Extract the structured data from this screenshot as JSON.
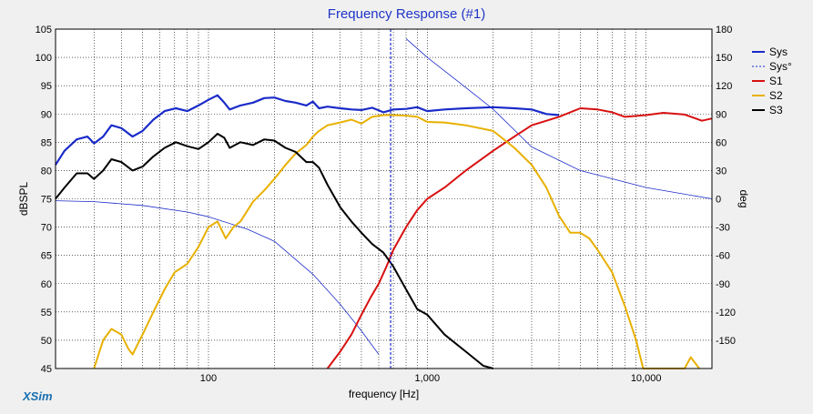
{
  "app": {
    "brand": "XSim"
  },
  "chart_data": {
    "type": "line",
    "title": "Frequency Response (#1)",
    "xlabel": "frequency [Hz]",
    "ylabel": "dBSPL",
    "y2label": "deg",
    "xscale": "log",
    "xlim": [
      20,
      20000
    ],
    "ylim": [
      45,
      105
    ],
    "y2lim": [
      -180,
      180
    ],
    "xticks": [
      100,
      1000,
      10000
    ],
    "xtick_labels": [
      "100",
      "1,000",
      "10,000"
    ],
    "yticks": [
      45,
      50,
      55,
      60,
      65,
      70,
      75,
      80,
      85,
      90,
      95,
      100,
      105
    ],
    "y2ticks": [
      -150,
      -120,
      -90,
      -60,
      -30,
      0,
      30,
      60,
      90,
      120,
      150,
      180
    ],
    "grid": true,
    "legend_position": "top-right",
    "marker_freq": 680,
    "series": [
      {
        "name": "Sys",
        "axis": "left",
        "color": "#1a2bc8",
        "width": 2.2,
        "x": [
          20,
          22,
          25,
          28,
          30,
          33,
          36,
          40,
          45,
          50,
          56,
          63,
          71,
          80,
          90,
          100,
          110,
          118,
          125,
          140,
          160,
          180,
          200,
          225,
          250,
          280,
          300,
          320,
          350,
          400,
          450,
          500,
          560,
          630,
          700,
          800,
          900,
          1000,
          1200,
          1500,
          2000,
          2500,
          3000,
          3500,
          4000
        ],
        "y": [
          81,
          83.5,
          85.5,
          86,
          84.8,
          86,
          88,
          87.5,
          86,
          87,
          89,
          90.5,
          91,
          90.5,
          91.5,
          92.5,
          93.3,
          92,
          90.8,
          91.5,
          92,
          92.8,
          92.9,
          92.3,
          92,
          91.5,
          92.2,
          91,
          91.3,
          91,
          90.8,
          90.7,
          91.1,
          90.3,
          90.8,
          90.9,
          91.2,
          90.5,
          90.8,
          91,
          91.2,
          91,
          90.8,
          90,
          89.8
        ]
      },
      {
        "name": "Sys°",
        "axis": "right",
        "color": "#1a2bc8",
        "width": 0.8,
        "x": [
          20,
          30,
          50,
          80,
          100,
          150,
          200,
          300,
          400,
          500,
          600,
          700,
          800,
          1000,
          1500,
          2000,
          3000,
          5000,
          10000,
          20000
        ],
        "y": [
          -2,
          -3,
          -7,
          -14,
          -19,
          -32,
          -45,
          -80,
          -112,
          -140,
          -165,
          185,
          170,
          150,
          118,
          95,
          55,
          30,
          12,
          0
        ]
      },
      {
        "name": "S1",
        "axis": "left",
        "color": "#d81010",
        "width": 2,
        "x": [
          350,
          400,
          450,
          500,
          550,
          600,
          650,
          700,
          800,
          900,
          1000,
          1200,
          1500,
          2000,
          2500,
          3000,
          4000,
          5000,
          6000,
          7000,
          8000,
          10000,
          12000,
          15000,
          18000,
          20000
        ],
        "y": [
          45,
          48,
          51,
          54.5,
          57.5,
          60,
          63,
          66,
          70,
          73,
          75,
          77,
          80,
          83.5,
          86,
          88,
          89.5,
          91,
          90.8,
          90.3,
          89.5,
          89.8,
          90.2,
          89.9,
          88.8,
          89.2
        ]
      },
      {
        "name": "S2",
        "axis": "left",
        "color": "#e8b000",
        "width": 2,
        "x": [
          30,
          33,
          36,
          40,
          43,
          45,
          50,
          56,
          63,
          70,
          80,
          90,
          100,
          110,
          120,
          130,
          140,
          160,
          180,
          200,
          225,
          250,
          280,
          300,
          320,
          350,
          400,
          450,
          500,
          560,
          630,
          700,
          800,
          900,
          1000,
          1200,
          1500,
          2000,
          2500,
          3000,
          3500,
          4000,
          4500,
          5000,
          5500,
          6000,
          7000,
          8000,
          9000,
          9700,
          15000,
          16000,
          17500
        ],
        "y": [
          45,
          50,
          52,
          51,
          48.5,
          47.5,
          51,
          55,
          59,
          62,
          63.5,
          66.5,
          70,
          71,
          68,
          70,
          71,
          74.5,
          76.5,
          78.5,
          81,
          83,
          84.5,
          86,
          87,
          88,
          88.5,
          89,
          88.3,
          89.5,
          89.8,
          89.8,
          89.7,
          89.5,
          88.6,
          88.5,
          88,
          87,
          84,
          81,
          77,
          72,
          69,
          69,
          68,
          66,
          62,
          56,
          50,
          45,
          45,
          47,
          45
        ]
      },
      {
        "name": "S3",
        "axis": "left",
        "color": "#000000",
        "width": 2,
        "x": [
          20,
          22,
          25,
          28,
          30,
          33,
          36,
          40,
          45,
          50,
          56,
          63,
          71,
          80,
          90,
          100,
          110,
          118,
          125,
          140,
          160,
          180,
          200,
          225,
          250,
          280,
          300,
          320,
          350,
          400,
          450,
          500,
          560,
          630,
          700,
          800,
          900,
          1000,
          1200,
          1500,
          1800,
          2000
        ],
        "y": [
          75,
          77,
          79.5,
          79.5,
          78.5,
          80,
          82,
          81.5,
          80,
          80.7,
          82.5,
          84,
          85,
          84.3,
          83.8,
          85,
          86.5,
          85.8,
          84,
          85,
          84.5,
          85.5,
          85.3,
          84,
          83.3,
          81.5,
          81.5,
          80.5,
          77.5,
          73.5,
          71,
          69,
          67,
          65.5,
          63,
          59,
          55.5,
          54.5,
          51,
          48,
          45.5,
          45
        ]
      }
    ]
  }
}
